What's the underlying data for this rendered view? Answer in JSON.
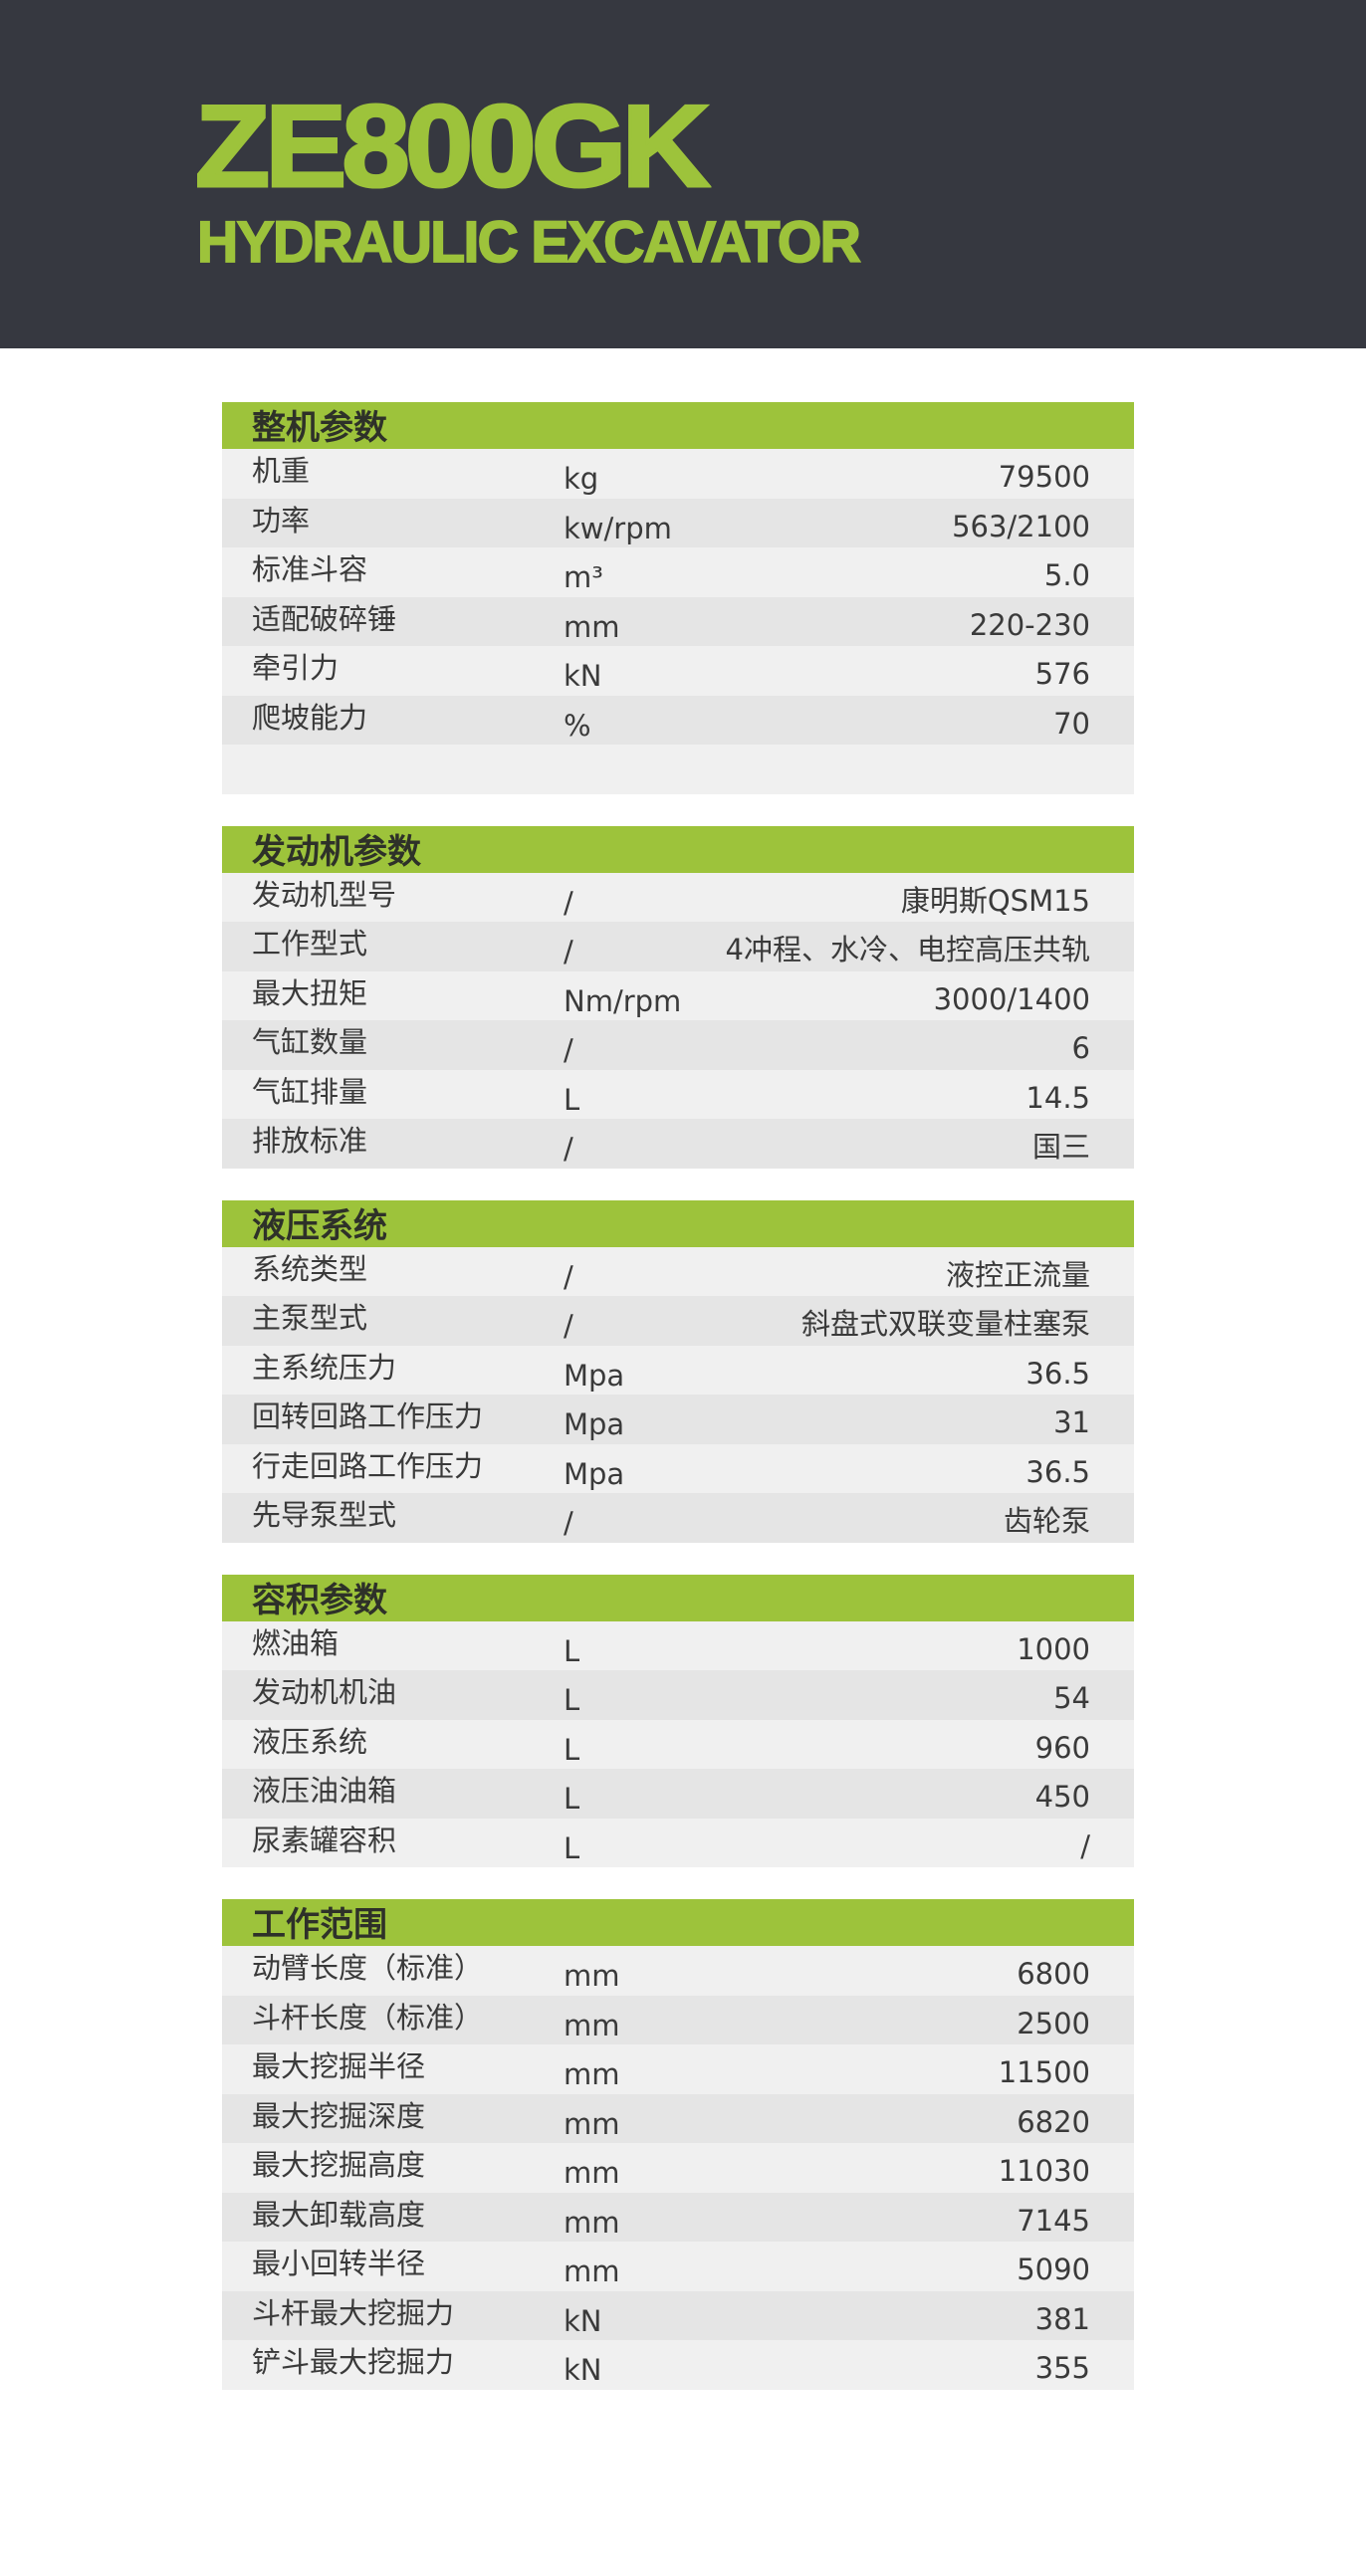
{
  "header": {
    "model": "ZE800GK",
    "subtitle": "HYDRAULIC EXCAVATOR"
  },
  "colors": {
    "banner": "#363840",
    "accent": "#9dc33b",
    "row_light": "#f0f0f0",
    "row_dark": "#e5e5e5"
  },
  "sections": [
    {
      "title": "整机参数",
      "rows": [
        {
          "label": "机重",
          "unit": "kg",
          "value": "79500"
        },
        {
          "label": "功率",
          "unit": "kw/rpm",
          "value": "563/2100"
        },
        {
          "label": "标准斗容",
          "unit": "m³",
          "value": "5.0"
        },
        {
          "label": "适配破碎锤",
          "unit": "mm",
          "value": "220-230"
        },
        {
          "label": "牵引力",
          "unit": "kN",
          "value": "576"
        },
        {
          "label": "爬坡能力",
          "unit": "%",
          "value": "70"
        }
      ]
    },
    {
      "title": "发动机参数",
      "rows": [
        {
          "label": "发动机型号",
          "unit": "/",
          "value": "康明斯QSM15"
        },
        {
          "label": "工作型式",
          "unit": "/",
          "value": "4冲程、水冷、电控高压共轨"
        },
        {
          "label": "最大扭矩",
          "unit": "Nm/rpm",
          "value": "3000/1400"
        },
        {
          "label": "气缸数量",
          "unit": "/",
          "value": "6"
        },
        {
          "label": "气缸排量",
          "unit": "L",
          "value": "14.5"
        },
        {
          "label": "排放标准",
          "unit": "/",
          "value": "国三"
        }
      ]
    },
    {
      "title": "液压系统",
      "rows": [
        {
          "label": "系统类型",
          "unit": "/",
          "value": "液控正流量"
        },
        {
          "label": "主泵型式",
          "unit": "/",
          "value": "斜盘式双联变量柱塞泵"
        },
        {
          "label": "主系统压力",
          "unit": "Mpa",
          "value": "36.5"
        },
        {
          "label": "回转回路工作压力",
          "unit": "Mpa",
          "value": "31"
        },
        {
          "label": "行走回路工作压力",
          "unit": "Mpa",
          "value": "36.5"
        },
        {
          "label": "先导泵型式",
          "unit": "/",
          "value": "齿轮泵"
        }
      ]
    },
    {
      "title": "容积参数",
      "rows": [
        {
          "label": "燃油箱",
          "unit": "L",
          "value": "1000"
        },
        {
          "label": "发动机机油",
          "unit": "L",
          "value": "54"
        },
        {
          "label": "液压系统",
          "unit": "L",
          "value": "960"
        },
        {
          "label": "液压油油箱",
          "unit": "L",
          "value": "450"
        },
        {
          "label": "尿素罐容积",
          "unit": "L",
          "value": "/"
        }
      ]
    },
    {
      "title": "工作范围",
      "rows": [
        {
          "label": "动臂长度（标准）",
          "unit": "mm",
          "value": "6800"
        },
        {
          "label": "斗杆长度（标准）",
          "unit": "mm",
          "value": "2500"
        },
        {
          "label": "最大挖掘半径",
          "unit": "mm",
          "value": "11500"
        },
        {
          "label": "最大挖掘深度",
          "unit": "mm",
          "value": "6820"
        },
        {
          "label": "最大挖掘高度",
          "unit": "mm",
          "value": "11030"
        },
        {
          "label": "最大卸载高度",
          "unit": "mm",
          "value": "7145"
        },
        {
          "label": "最小回转半径",
          "unit": "mm",
          "value": "5090"
        },
        {
          "label": "斗杆最大挖掘力",
          "unit": "kN",
          "value": "381"
        },
        {
          "label": "铲斗最大挖掘力",
          "unit": "kN",
          "value": "355"
        }
      ]
    }
  ]
}
